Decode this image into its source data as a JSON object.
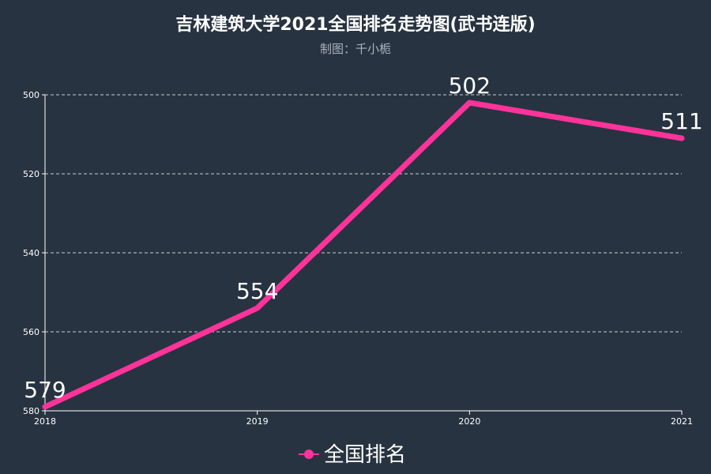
{
  "chart_data": {
    "type": "line",
    "title": "吉林建筑大学2021全国排名走势图(武书连版)",
    "subtitle": "制图：千小栀",
    "categories": [
      "2018",
      "2019",
      "2020",
      "2021"
    ],
    "series": [
      {
        "name": "全国排名",
        "values": [
          579,
          554,
          502,
          511
        ],
        "color": "#ff3399"
      }
    ],
    "ylim": [
      500,
      580
    ],
    "y_inverted": true,
    "yticks": [
      500,
      520,
      540,
      560,
      580
    ],
    "grid": true,
    "legend_position": "bottom-center"
  }
}
